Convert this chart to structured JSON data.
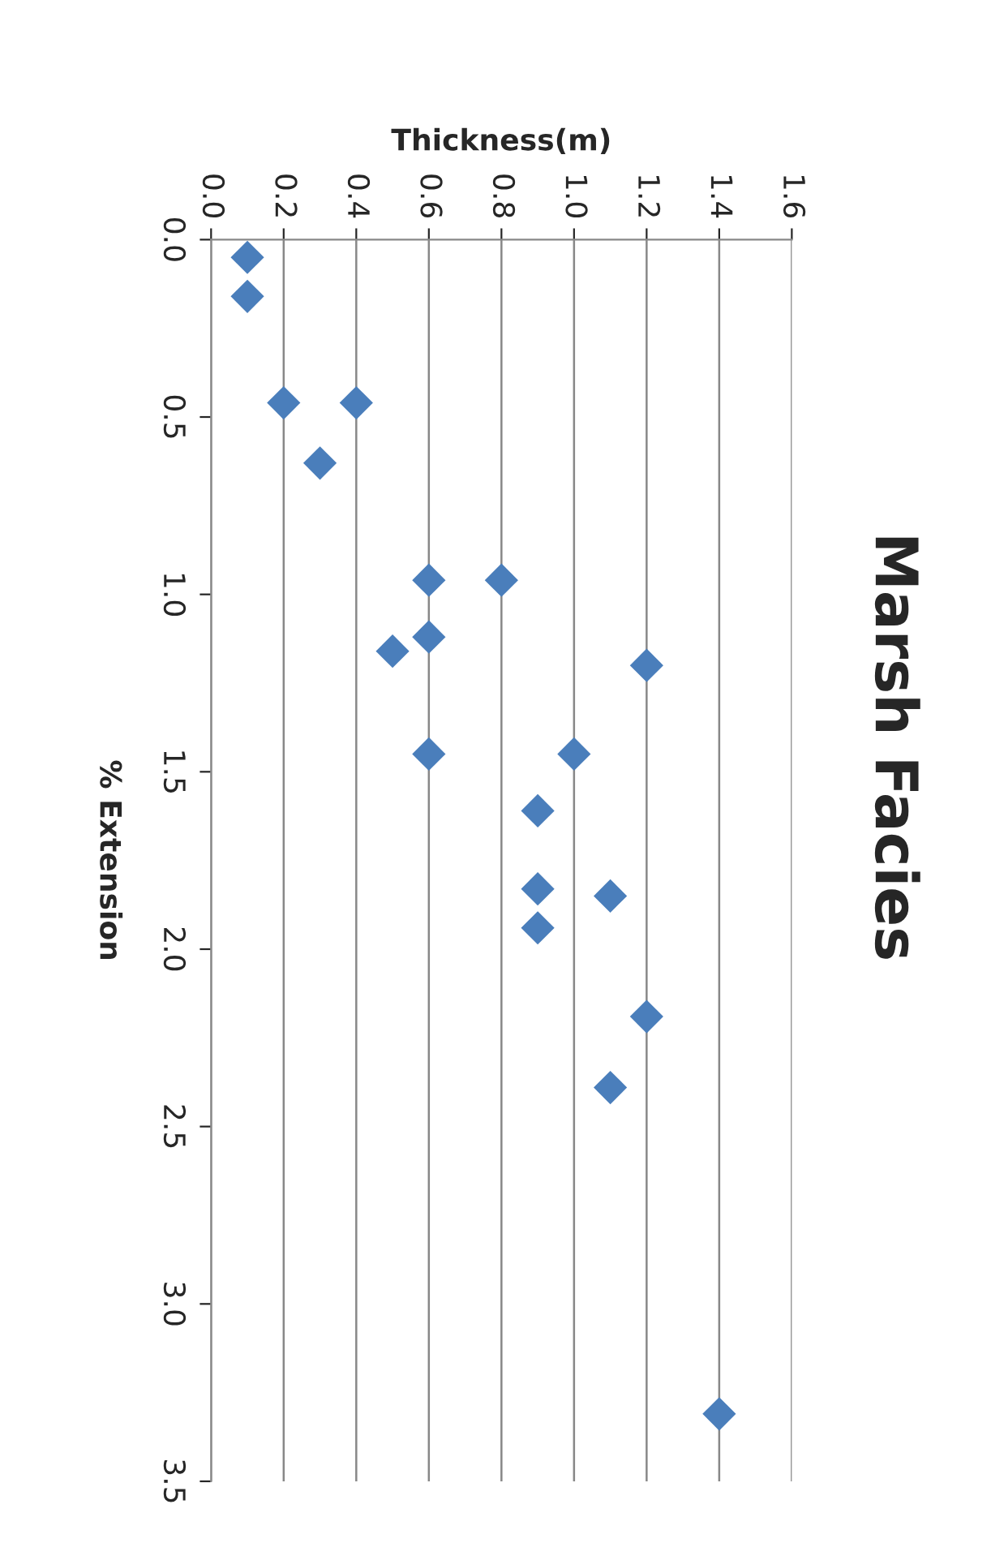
{
  "chart_data": {
    "type": "scatter",
    "title": "Marsh Facies",
    "xlabel": "Thickness(m)",
    "ylabel": "% Extension",
    "x": [
      0.1,
      0.1,
      0.2,
      0.4,
      0.3,
      0.6,
      0.8,
      0.6,
      0.5,
      1.2,
      0.6,
      1.0,
      0.9,
      0.9,
      1.1,
      0.9,
      1.2,
      1.1,
      1.4
    ],
    "series": [
      {
        "color": "#4a7ebb",
        "values": [
          0.05,
          0.16,
          0.46,
          0.46,
          0.63,
          0.96,
          0.96,
          1.12,
          1.16,
          1.2,
          1.45,
          1.45,
          1.61,
          1.83,
          1.85,
          1.94,
          2.19,
          2.39,
          3.31
        ]
      }
    ],
    "ylim": [
      3.5,
      0
    ],
    "yticks": [
      {
        "value": 0,
        "label": "0.0"
      },
      {
        "value": 0.5,
        "label": "0.5"
      },
      {
        "value": 1,
        "label": "1.0"
      },
      {
        "value": 1.5,
        "label": "1.5"
      },
      {
        "value": 2,
        "label": "2.0"
      },
      {
        "value": 2.5,
        "label": "2.5"
      },
      {
        "value": 3,
        "label": "3.0"
      },
      {
        "value": 3.5,
        "label": "3.5"
      }
    ],
    "xlim": [
      0,
      1.6
    ],
    "xticks": [
      {
        "value": 0,
        "label": "0.0"
      },
      {
        "value": 0.2,
        "label": "0.2"
      },
      {
        "value": 0.4,
        "label": "0.4"
      },
      {
        "value": 0.6,
        "label": "0.6"
      },
      {
        "value": 0.8,
        "label": "0.8"
      },
      {
        "value": 1,
        "label": "1.0"
      },
      {
        "value": 1.2,
        "label": "1.2"
      },
      {
        "value": 1.4,
        "label": "1.4"
      },
      {
        "value": 1.6,
        "label": "1.6"
      }
    ],
    "grid": "x",
    "marker": "diamond",
    "legend": false
  }
}
